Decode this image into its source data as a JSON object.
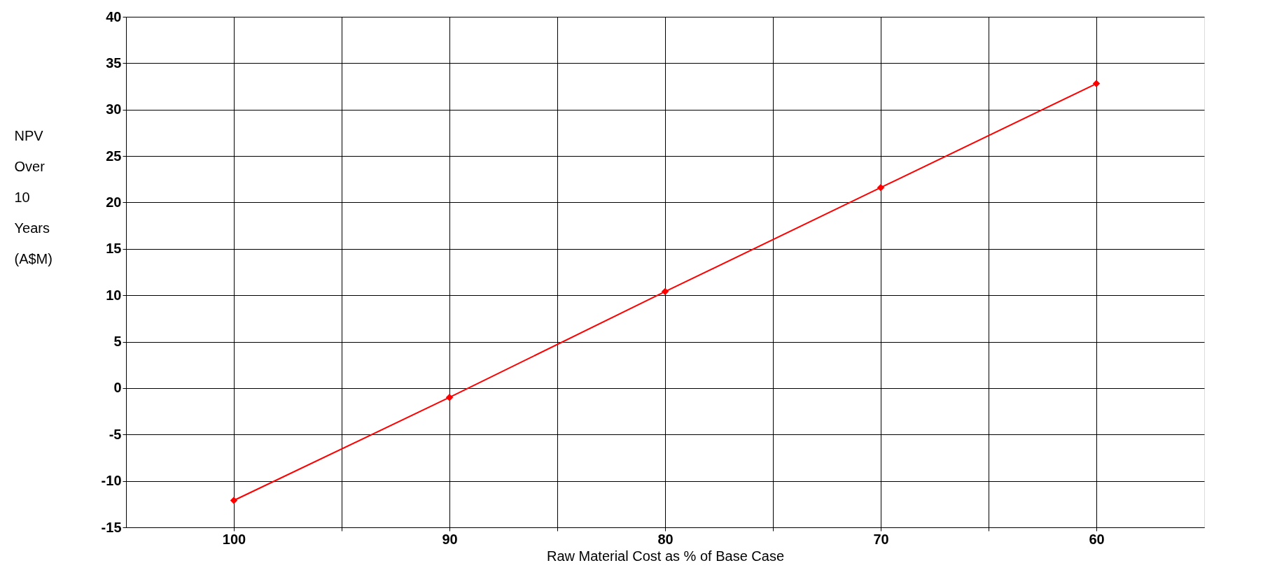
{
  "chart_data": {
    "type": "line",
    "xlabel": "Raw Material Cost as % of Base Case",
    "ylabel": "NPV Over 10 Years (A$M)",
    "x": [
      100,
      90,
      80,
      70,
      60
    ],
    "series": [
      {
        "color": "#ff0000",
        "values": [
          -12.1,
          -1.0,
          10.4,
          21.6,
          32.8
        ]
      }
    ],
    "xlim": [
      105,
      55
    ],
    "xticks": [
      100,
      {
        "value": 95,
        "label": null
      },
      90,
      {
        "value": 85,
        "label": null
      },
      80,
      {
        "value": 75,
        "label": null
      },
      70,
      {
        "value": 65,
        "label": null
      },
      60
    ],
    "ylim": [
      -15,
      40
    ],
    "yticks": [
      -15,
      -10,
      -5,
      0,
      5,
      10,
      15,
      20,
      25,
      30,
      35,
      40
    ],
    "grid": true,
    "marker": "diamond",
    "line_style": "solid"
  }
}
